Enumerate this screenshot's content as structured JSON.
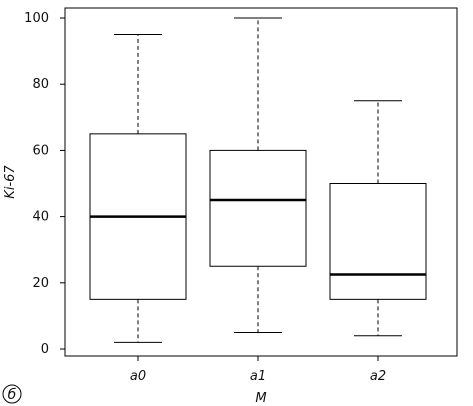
{
  "panel_label": "б",
  "chart_data": {
    "type": "box",
    "title": "",
    "xlabel": "M",
    "ylabel": "Ki-67",
    "ylim": [
      0,
      100
    ],
    "yticks": [
      0,
      20,
      40,
      60,
      80,
      100
    ],
    "categories": [
      "a0",
      "a1",
      "a2"
    ],
    "boxes": [
      {
        "category": "a0",
        "whisker_low": 2,
        "q1": 15,
        "median": 40,
        "q3": 65,
        "whisker_high": 95
      },
      {
        "category": "a1",
        "whisker_low": 5,
        "q1": 25,
        "median": 45,
        "q3": 60,
        "whisker_high": 100
      },
      {
        "category": "a2",
        "whisker_low": 4,
        "q1": 15,
        "median": 22.5,
        "q3": 50,
        "whisker_high": 75
      }
    ],
    "grid": false,
    "legend": "none"
  }
}
